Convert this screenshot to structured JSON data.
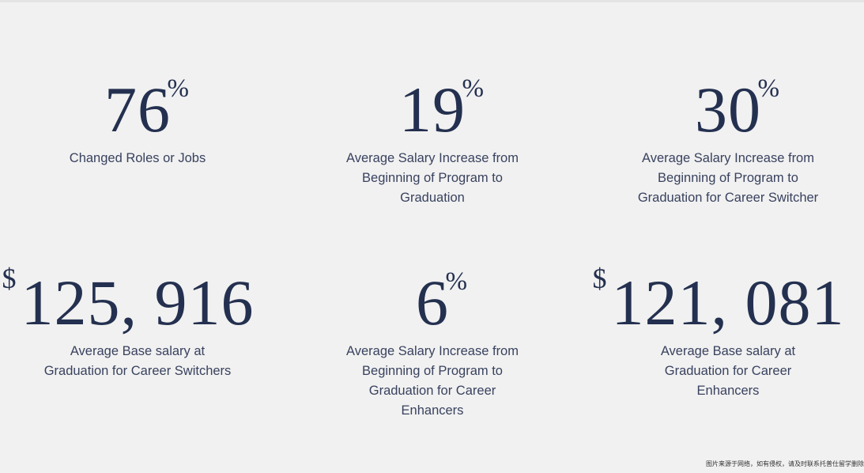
{
  "stats": [
    {
      "value": "76",
      "prefix": "",
      "suffix": "%",
      "label": "Changed Roles or Jobs"
    },
    {
      "value": "19",
      "prefix": "",
      "suffix": "%",
      "label": "Average Salary Increase from\nBeginning of Program to\nGraduation"
    },
    {
      "value": "30",
      "prefix": "",
      "suffix": "%",
      "label": "Average Salary Increase from\nBeginning of Program to\nGraduation for Career Switcher"
    },
    {
      "value": "125, 916",
      "prefix": "$",
      "suffix": "",
      "label": "Average Base salary at\nGraduation for Career Switchers"
    },
    {
      "value": "6",
      "prefix": "",
      "suffix": "%",
      "label": "Average Salary Increase from\nBeginning of Program to\nGraduation for Career\nEnhancers"
    },
    {
      "value": "121, 081",
      "prefix": "$",
      "suffix": "",
      "label": "Average Base salary at\nGraduation for Career\nEnhancers"
    }
  ],
  "watermark": "图片来源于网络，如有侵权，请及时联系托普仕留学删除",
  "colors": {
    "background": "#f1f1f1",
    "figure": "#24304f",
    "label": "#39425f"
  }
}
